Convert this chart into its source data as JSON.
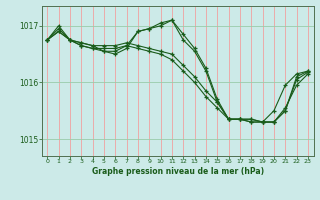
{
  "title": "Graphe pression niveau de la mer (hPa)",
  "background_color": "#cceae8",
  "grid_color_v": "#f0a0a0",
  "grid_color_h": "#99ccaa",
  "line_color": "#1a5c1a",
  "ylim": [
    1014.7,
    1017.35
  ],
  "xlim": [
    -0.5,
    23.5
  ],
  "yticks": [
    1015,
    1016,
    1017
  ],
  "xticks": [
    0,
    1,
    2,
    3,
    4,
    5,
    6,
    7,
    8,
    9,
    10,
    11,
    12,
    13,
    14,
    15,
    16,
    17,
    18,
    19,
    20,
    21,
    22,
    23
  ],
  "series1": {
    "x": [
      0,
      1,
      2,
      3,
      4,
      5,
      6,
      7,
      8,
      9,
      10,
      11,
      12,
      13,
      14,
      15,
      16,
      17,
      18,
      19,
      20,
      21,
      22,
      23
    ],
    "y": [
      1016.75,
      1016.9,
      1016.75,
      1016.7,
      1016.65,
      1016.65,
      1016.65,
      1016.7,
      1016.65,
      1016.6,
      1016.55,
      1016.5,
      1016.3,
      1016.1,
      1015.85,
      1015.65,
      1015.35,
      1015.35,
      1015.35,
      1015.3,
      1015.3,
      1015.5,
      1016.1,
      1016.2
    ]
  },
  "series2": {
    "x": [
      0,
      1,
      2,
      3,
      4,
      5,
      6,
      7,
      8,
      9,
      10,
      11,
      12,
      13,
      14,
      15,
      16,
      17,
      18,
      19,
      20,
      21,
      22,
      23
    ],
    "y": [
      1016.75,
      1016.95,
      1016.75,
      1016.7,
      1016.65,
      1016.55,
      1016.55,
      1016.65,
      1016.9,
      1016.95,
      1017.0,
      1017.1,
      1016.85,
      1016.6,
      1016.25,
      1015.7,
      1015.35,
      1015.35,
      1015.35,
      1015.3,
      1015.3,
      1015.55,
      1015.95,
      1016.15
    ]
  },
  "series3": {
    "x": [
      0,
      1,
      2,
      3,
      4,
      5,
      6,
      7,
      8,
      9,
      10,
      11,
      12,
      13,
      14,
      15,
      16,
      17,
      18,
      19,
      20,
      21,
      22,
      23
    ],
    "y": [
      1016.75,
      1017.0,
      1016.75,
      1016.65,
      1016.6,
      1016.55,
      1016.5,
      1016.6,
      1016.9,
      1016.95,
      1017.05,
      1017.1,
      1016.75,
      1016.55,
      1016.2,
      1015.65,
      1015.35,
      1015.35,
      1015.3,
      1015.3,
      1015.5,
      1015.95,
      1016.15,
      1016.2
    ]
  },
  "series4": {
    "x": [
      0,
      1,
      2,
      3,
      4,
      5,
      6,
      7,
      8,
      9,
      10,
      11,
      12,
      13,
      14,
      15,
      16,
      17,
      18,
      19,
      20,
      21,
      22,
      23
    ],
    "y": [
      1016.75,
      1016.9,
      1016.75,
      1016.65,
      1016.6,
      1016.6,
      1016.6,
      1016.65,
      1016.6,
      1016.55,
      1016.5,
      1016.4,
      1016.2,
      1016.0,
      1015.75,
      1015.55,
      1015.35,
      1015.35,
      1015.3,
      1015.3,
      1015.3,
      1015.5,
      1016.05,
      1016.18
    ]
  }
}
